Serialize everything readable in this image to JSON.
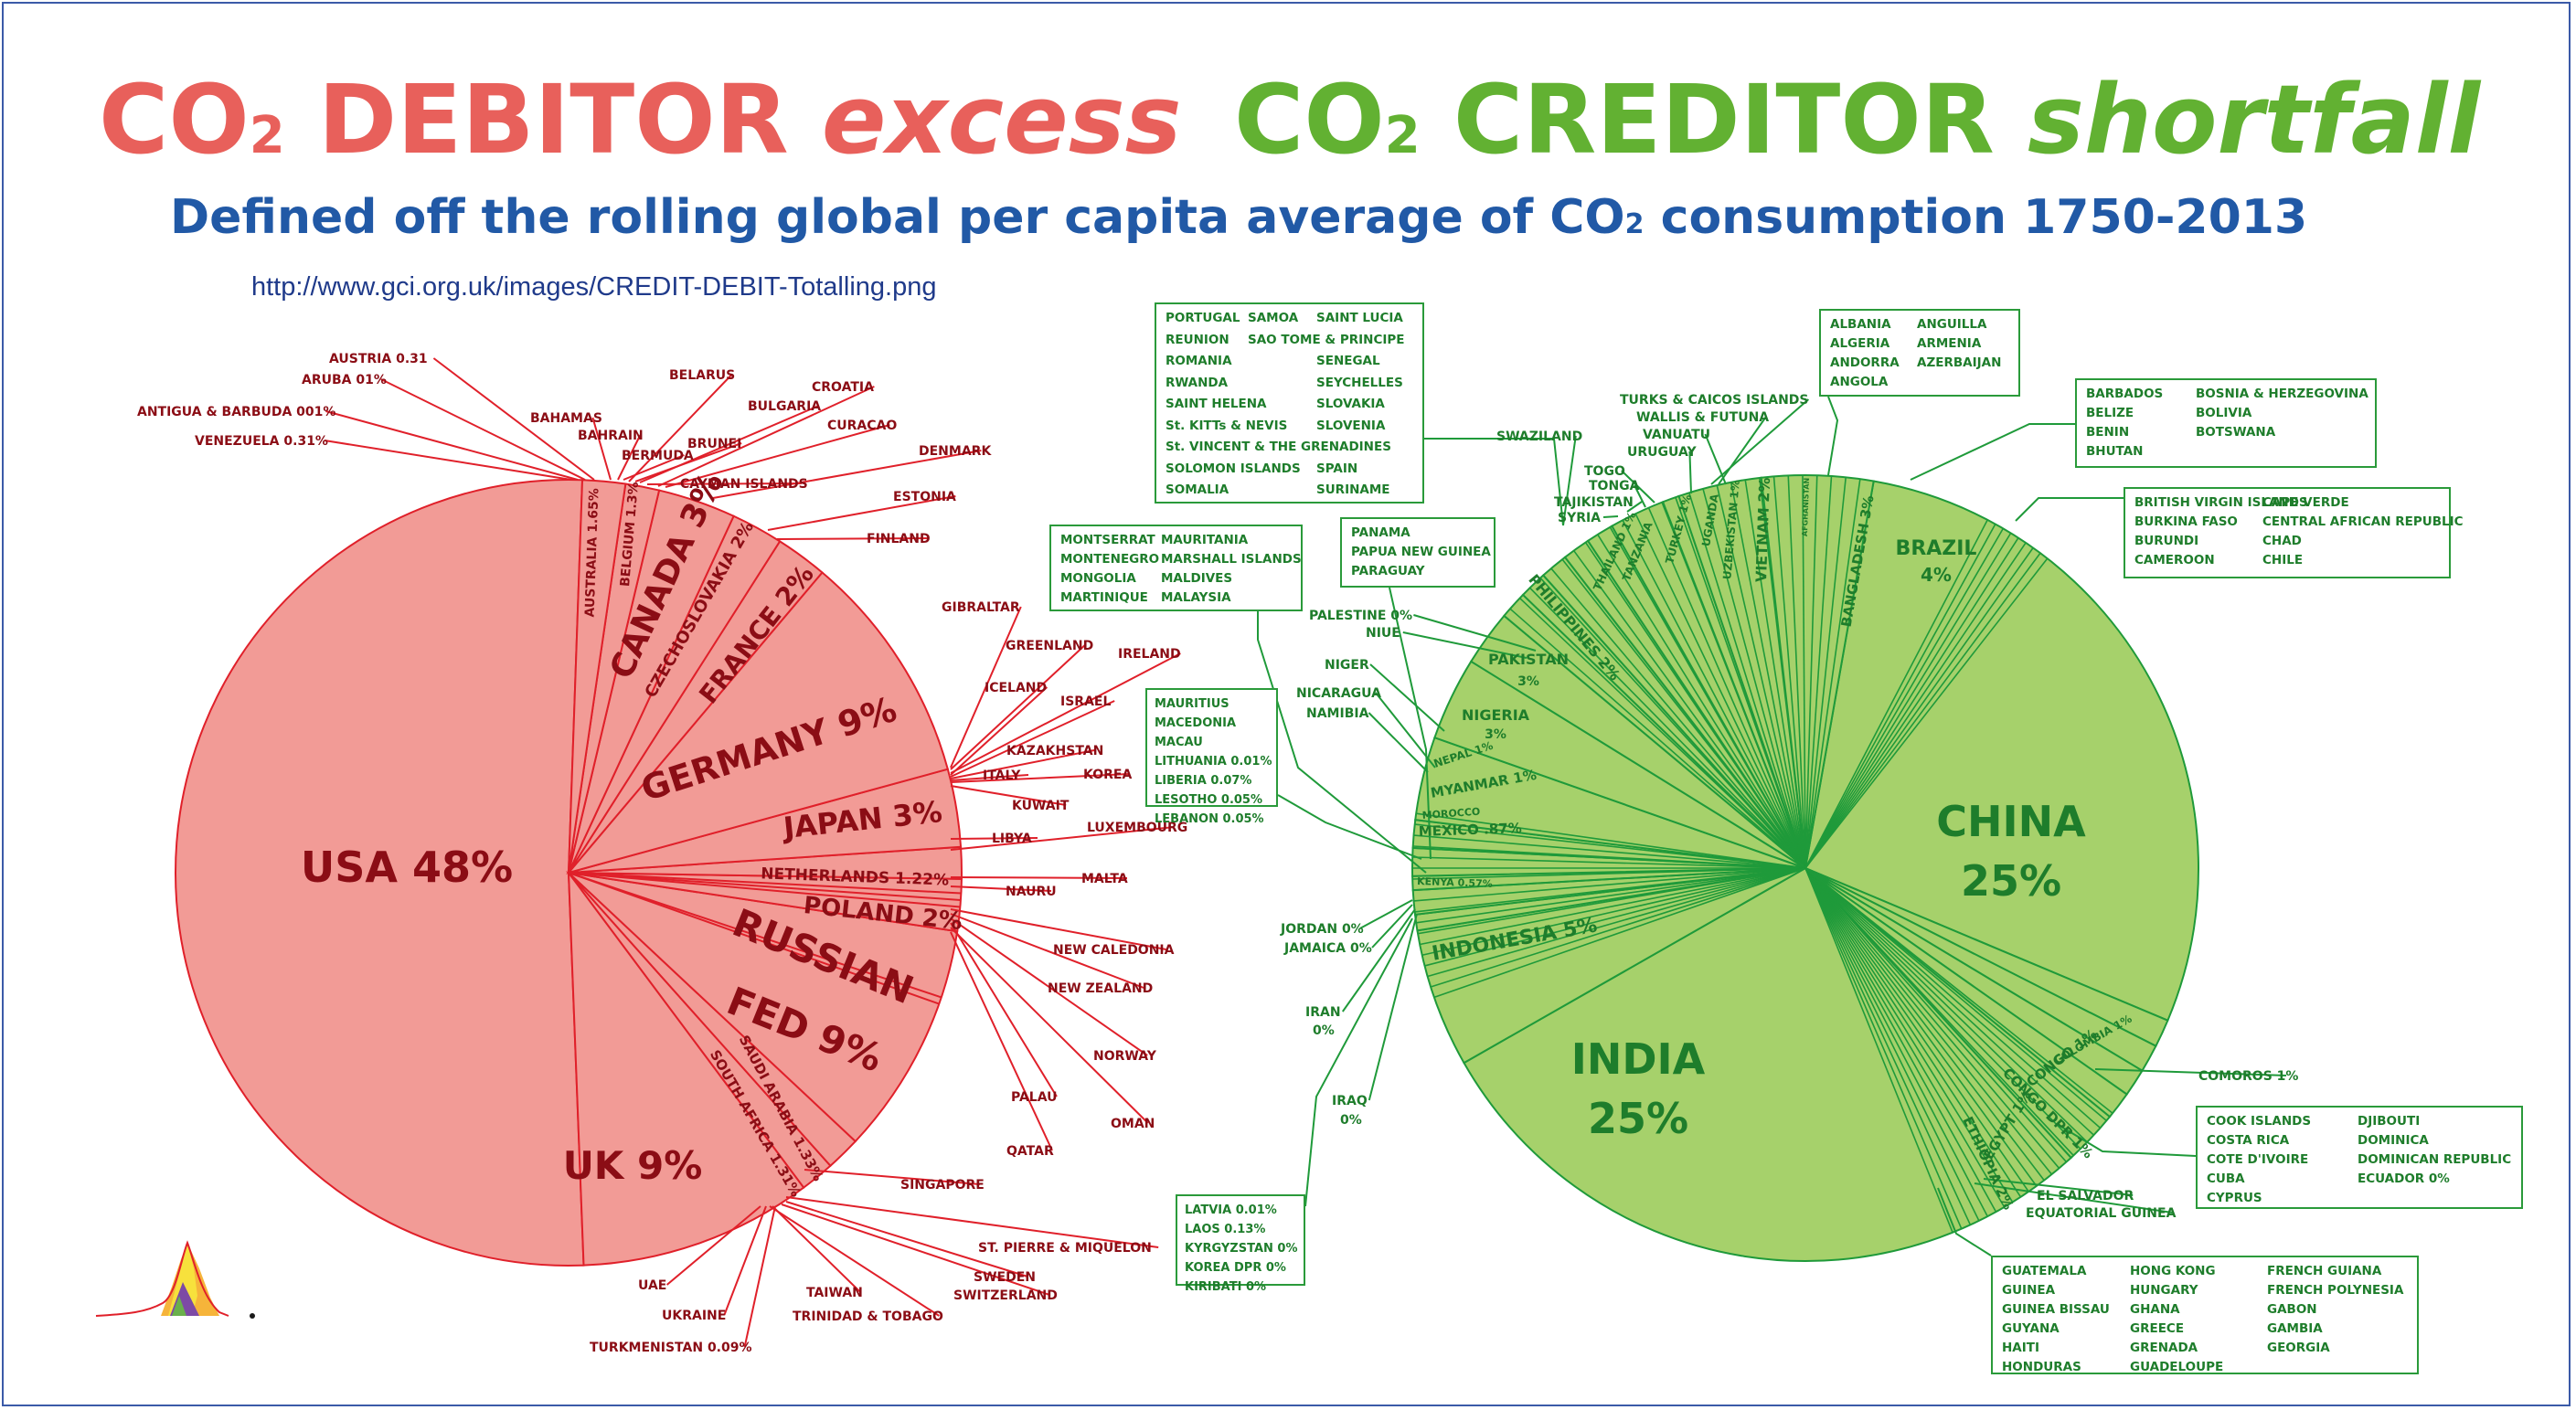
{
  "header": {
    "debit_co": "CO",
    "debit_sub": "2",
    "debit_word": " DEBITOR ",
    "debit_italic": "excess",
    "credit_co": "CO",
    "credit_sub": "2",
    "credit_word": " CREDITOR ",
    "credit_italic": "shortfall",
    "subtitle_a": "Defined off the rolling global per capita average of CO",
    "subtitle_sub": "2",
    "subtitle_b": " consumption 1750-2013",
    "url": "http://www.gci.org.uk/images/CREDIT-DEBIT-Totalling.png"
  },
  "colors": {
    "debit_fill": "#f29b96",
    "debit_line": "#e0202a",
    "debit_text": "#8b0d15",
    "credit_fill": "#a6d16b",
    "credit_line": "#1f9a3a",
    "credit_text": "#1e7d2b",
    "title_red": "#e8605b",
    "title_green": "#62b132",
    "subtitle_blue": "#2159a6"
  },
  "chart_data": [
    {
      "type": "pie",
      "title": "CO2 DEBITOR excess",
      "slices": [
        {
          "name": "USA 48%",
          "value": 48
        },
        {
          "name": "UK 9%",
          "value": 9
        },
        {
          "name": "SOUTH AFRICA 1.31%",
          "value": 1.31
        },
        {
          "name": "SAUDI ARABIA 1.33%",
          "value": 1.33
        },
        {
          "name": "RUSSIAN FED 9%",
          "value": 9
        },
        {
          "name": "POLAND 2%",
          "value": 2
        },
        {
          "name": "NETHERLANDS 1.22%",
          "value": 1.22
        },
        {
          "name": "JAPAN 3%",
          "value": 3
        },
        {
          "name": "GERMANY 9%",
          "value": 9
        },
        {
          "name": "FRANCE 2%",
          "value": 2
        },
        {
          "name": "CZECHOSLOVAKIA 2%",
          "value": 2
        },
        {
          "name": "CANADA 3%",
          "value": 3
        },
        {
          "name": "BELGIUM 1.3%",
          "value": 1.3
        },
        {
          "name": "AUSTRALIA 1.65%",
          "value": 1.65
        }
      ],
      "callouts": [
        "AUSTRIA 0.31",
        "ARUBA 01%",
        "ANTIGUA & BARBUDA 001%",
        "VENEZUELA 0.31%",
        "BAHAMAS",
        "BAHRAIN",
        "BERMUDA",
        "BELARUS",
        "BRUNEI",
        "BULGARIA",
        "CAYMAN ISLANDS",
        "CROATIA",
        "CURACAO",
        "DENMARK",
        "ESTONIA",
        "FINLAND",
        "GIBRALTAR",
        "GREENLAND",
        "IRELAND",
        "ICELAND",
        "ISRAEL",
        "KAZAKHSTAN",
        "ITALY",
        "KOREA",
        "KUWAIT",
        "LIBYA",
        "LUXEMBOURG",
        "MALTA",
        "NAURU",
        "NEW CALEDONIA",
        "NEW ZEALAND",
        "NORWAY",
        "PALAU",
        "OMAN",
        "QATAR",
        "SINGAPORE",
        "ST. PIERRE & MIQUELON",
        "SWEDEN",
        "SWITZERLAND",
        "TAIWAN",
        "UAE",
        "UKRAINE",
        "TRINIDAD & TOBAGO",
        "TURKMENISTAN 0.09%"
      ]
    },
    {
      "type": "pie",
      "title": "CO2 CREDITOR shortfall",
      "slices": [
        {
          "name": "CHINA 25%",
          "value": 25
        },
        {
          "name": "COLOMBIA 1%",
          "value": 1
        },
        {
          "name": "CONGO 1%",
          "value": 1
        },
        {
          "name": "CONGO DPR 1%",
          "value": 1
        },
        {
          "name": "EGYPT 1%",
          "value": 1
        },
        {
          "name": "ETHIOPIA 2%",
          "value": 2
        },
        {
          "name": "INDIA 25%",
          "value": 25
        },
        {
          "name": "INDONESIA 5%",
          "value": 5
        },
        {
          "name": "KENYA 0.57%",
          "value": 0.57
        },
        {
          "name": "MEXICO .87%",
          "value": 0.87
        },
        {
          "name": "MOROCCO",
          "value": 0.5
        },
        {
          "name": "MYANMAR 1%",
          "value": 1
        },
        {
          "name": "NEPAL 1%",
          "value": 1
        },
        {
          "name": "NIGERIA 3%",
          "value": 3
        },
        {
          "name": "PAKISTAN 3%",
          "value": 3
        },
        {
          "name": "PHILIPPINES 2%",
          "value": 2
        },
        {
          "name": "THAILAND",
          "value": 1
        },
        {
          "name": "TANZANIA",
          "value": 1
        },
        {
          "name": "TURKEY 1%",
          "value": 1
        },
        {
          "name": "UGANDA",
          "value": 1
        },
        {
          "name": "UZBEKISTAN 1%",
          "value": 1
        },
        {
          "name": "VIETNAM 2%",
          "value": 2
        },
        {
          "name": "AFGHANISTAN",
          "value": 0.6
        },
        {
          "name": "BANGLADESH 3%",
          "value": 3
        },
        {
          "name": "BRAZIL 4%",
          "value": 4
        }
      ]
    }
  ],
  "debit_labels": {
    "usa": "USA 48%",
    "uk": "UK 9%",
    "russia_1": "RUSSIAN",
    "russia_2": "FED 9%",
    "germany": "GERMANY 9%",
    "japan": "JAPAN 3%",
    "poland": "POLAND 2%",
    "netherlands": "NETHERLANDS 1.22%",
    "canada": "CANADA 3%",
    "france": "FRANCE 2%",
    "czech": "CZECHOSLOVAKIA 2%",
    "belgium": "BELGIUM 1.3%",
    "australia": "AUSTRALIA 1.65%",
    "saudi": "SAUDI ARABIA 1.33%",
    "south_africa": "SOUTH AFRICA 1.31%"
  },
  "debit_callouts": {
    "austria": "AUSTRIA 0.31",
    "aruba": "ARUBA 01%",
    "antigua": "ANTIGUA & BARBUDA 001%",
    "venezuela": "VENEZUELA 0.31%",
    "bahamas": "BAHAMAS",
    "bahrain": "BAHRAIN",
    "bermuda": "BERMUDA",
    "belarus": "BELARUS",
    "brunei": "BRUNEI",
    "bulgaria": "BULGARIA",
    "cayman": "CAYMAN ISLANDS",
    "croatia": "CROATIA",
    "curacao": "CURACAO",
    "denmark": "DENMARK",
    "estonia": "ESTONIA",
    "finland": "FINLAND",
    "gibraltar": "GIBRALTAR",
    "greenland": "GREENLAND",
    "ireland": "IRELAND",
    "iceland": "ICELAND",
    "israel": "ISRAEL",
    "kazakhstan": "KAZAKHSTAN",
    "italy": "ITALY",
    "korea": "KOREA",
    "kuwait": "KUWAIT",
    "libya": "LIBYA",
    "luxembourg": "LUXEMBOURG",
    "malta": "MALTA",
    "nauru": "NAURU",
    "new_caledonia": "NEW CALEDONIA",
    "new_zealand": "NEW ZEALAND",
    "norway": "NORWAY",
    "palau": "PALAU",
    "oman": "OMAN",
    "qatar": "QATAR",
    "singapore": "SINGAPORE",
    "st_pierre": "ST. PIERRE & MIQUELON",
    "sweden": "SWEDEN",
    "switzerland": "SWITZERLAND",
    "taiwan": "TAIWAN",
    "uae": "UAE",
    "ukraine": "UKRAINE",
    "trinidad": "TRINIDAD & TOBAGO",
    "turkmenistan": "TURKMENISTAN 0.09%"
  },
  "credit_labels": {
    "china_1": "CHINA",
    "china_2": "25%",
    "india_1": "INDIA",
    "india_2": "25%",
    "indonesia": "INDONESIA 5%",
    "brazil_1": "BRAZIL",
    "brazil_2": "4%",
    "bangladesh": "BANGLADESH 3%",
    "vietnam": "VIETNAM 2%",
    "afghanistan": "AFGHANISTAN",
    "uzbekistan": "UZBEKISTAN 1%",
    "uganda": "UGANDA",
    "turkey": "TURKEY 1%",
    "tanzania": "TANZANIA",
    "thailand": "THAILAND 1%",
    "philippines": "PHILIPPINES 2%",
    "pakistan_1": "PAKISTAN",
    "pakistan_2": "3%",
    "nigeria_1": "NIGERIA",
    "nigeria_2": "3%",
    "nepal": "NEPAL 1%",
    "myanmar": "MYANMAR 1%",
    "morocco": "MOROCCO",
    "mexico": "MEXICO .87%",
    "kenya": "KENYA 0.57%",
    "colombia": "COLOMBIA 1%",
    "congo": "CONGO 1%",
    "congo_dpr": "CONGO DPR 1%",
    "egypt": "EGYPT 1%",
    "ethiopia": "ETHIOPIA 2%"
  },
  "credit_callouts": {
    "swaziland": "SWAZILAND",
    "turks": "TURKS & CAICOS ISLANDS",
    "wallis": "WALLIS & FUTUNA",
    "vanuatu": "VANUATU",
    "uruguay": "URUGUAY",
    "togo": "TOGO",
    "tonga": "TONGA",
    "tajikistan": "TAJIKISTAN",
    "syria": "SYRIA",
    "palestine": "PALESTINE 0%",
    "niue": "NIUE",
    "niger": "NIGER",
    "nicaragua": "NICARAGUA",
    "namibia": "NAMIBIA",
    "jordan": "JORDAN 0%",
    "jamaica": "JAMAICA 0%",
    "iran_1": "IRAN",
    "iran_2": "0%",
    "iraq_1": "IRAQ",
    "iraq_2": "0%",
    "comoros": "COMOROS 1%",
    "el_salvador": "EL SALVADOR",
    "eq_guinea": "EQUATORIAL GUINEA"
  },
  "boxes": {
    "box_pacific": {
      "col1": [
        "PORTUGAL",
        "REUNION",
        "ROMANIA",
        "RWANDA",
        "SAINT HELENA",
        "St. KITTs & NEVIS",
        "St. VINCENT & THE GRENADINES",
        "SOLOMON ISLANDS",
        "SOMALIA"
      ],
      "col2": [
        "SAMOA",
        "SAO TOME & PRINCIPE"
      ],
      "col3": [
        "SAINT LUCIA",
        "",
        "SENEGAL",
        "SEYCHELLES",
        "SLOVAKIA",
        "SLOVENIA",
        "",
        "SPAIN",
        "SURINAME"
      ]
    },
    "box_albania": {
      "col1": [
        "ALBANIA",
        "ALGERIA",
        "ANDORRA",
        "ANGOLA"
      ],
      "col2": [
        "ANGUILLA",
        "ARMENIA",
        "AZERBAIJAN"
      ]
    },
    "box_barbados": {
      "col1": [
        "BARBADOS",
        "BELIZE",
        "BENIN",
        "BHUTAN"
      ],
      "col2": [
        "BOSNIA & HERZEGOVINA",
        "BOLIVIA",
        "BOTSWANA"
      ]
    },
    "box_british": {
      "col1": [
        "BRITISH VIRGIN ISLANDS",
        "BURKINA FASO",
        "BURUNDI",
        "CAMEROON"
      ],
      "col2": [
        "CAPE VERDE",
        "CENTRAL AFRICAN REPUBLIC",
        "CHAD",
        "CHILE"
      ]
    },
    "box_montserrat": {
      "col1": [
        "MONTSERRAT",
        "MONTENEGRO",
        "MONGOLIA",
        "MARTINIQUE"
      ],
      "col2": [
        "MAURITANIA",
        "MARSHALL ISLANDS",
        "MALDIVES",
        "MALAYSIA"
      ]
    },
    "box_panama": {
      "col1": [
        "PANAMA",
        "PAPUA NEW GUINEA",
        "PARAGUAY"
      ]
    },
    "box_mauritius": {
      "col1": [
        "MAURITIUS",
        "MACEDONIA",
        "MACAU",
        "LITHUANIA 0.01%",
        "LIBERIA 0.07%",
        "LESOTHO 0.05%",
        "LEBANON 0.05%"
      ]
    },
    "box_latvia": {
      "col1": [
        "LATVIA 0.01%",
        "LAOS 0.13%",
        "KYRGYZSTAN 0%",
        "KOREA DPR 0%",
        "KIRIBATI 0%"
      ]
    },
    "box_cook": {
      "col1": [
        "COOK ISLANDS",
        "COSTA RICA",
        "COTE D'IVOIRE",
        "CUBA",
        "CYPRUS"
      ],
      "col2": [
        "DJIBOUTI",
        "DOMINICA",
        "DOMINICAN  REPUBLIC",
        "ECUADOR 0%"
      ]
    },
    "box_guatemala": {
      "col1": [
        "GUATEMALA",
        "GUINEA",
        "GUINEA BISSAU",
        "GUYANA",
        "HAITI",
        "HONDURAS"
      ],
      "col2": [
        "HONG KONG",
        "HUNGARY",
        "GHANA",
        "GREECE",
        "GRENADA",
        "GUADELOUPE"
      ],
      "col3": [
        "FRENCH GUIANA",
        "FRENCH POLYNESIA",
        "GABON",
        "GAMBIA",
        "GEORGIA"
      ]
    }
  }
}
